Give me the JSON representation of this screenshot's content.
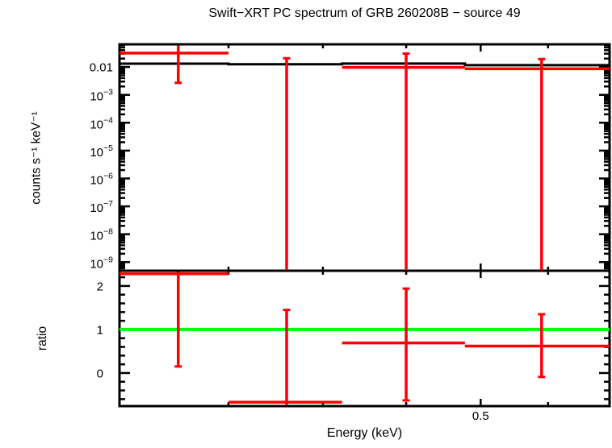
{
  "chart_data": {
    "type": "spectrum",
    "title": "Swift−XRT PC spectrum of GRB 260208B − source 49",
    "x_axis": {
      "label": "Energy (keV)",
      "scale": "log",
      "range": [
        0.3,
        0.6
      ],
      "major_ticks": [
        0.5
      ],
      "major_tick_labels": [
        "0.5"
      ],
      "minor_ticks": [
        0.35,
        0.4,
        0.45,
        0.55
      ]
    },
    "panels": [
      {
        "name": "counts",
        "ylabel": "counts s⁻¹ keV⁻¹",
        "yscale": "log",
        "yrange": [
          4.9e-10,
          0.065
        ],
        "ytick_values": [
          0.01,
          0.001,
          0.0001,
          1e-05,
          1e-06,
          1e-07,
          1e-08,
          1e-09
        ],
        "ytick_labels": [
          "0.01",
          "10^−3",
          "10^−4",
          "10^−5",
          "10^−6",
          "10^−7",
          "10^−8",
          "10^−9"
        ],
        "model": {
          "color": "#000000",
          "bin_edges": [
            0.3,
            0.35,
            0.411,
            0.489,
            0.6
          ],
          "values": [
            0.0132,
            0.0125,
            0.0133,
            0.0116
          ]
        },
        "data": {
          "color": "#ff0000",
          "points": [
            {
              "e_min": 0.3,
              "e_max": 0.35,
              "e": 0.326,
              "value": 0.0315,
              "err_high": "top",
              "err_low": 0.0027
            },
            {
              "e_min": 0.35,
              "e_max": 0.411,
              "e": 0.38,
              "value": null,
              "err_high": 0.0205,
              "err_low": "bottom"
            },
            {
              "e_min": 0.411,
              "e_max": 0.489,
              "e": 0.45,
              "value": 0.0097,
              "err_high": 0.0303,
              "err_low": "bottom"
            },
            {
              "e_min": 0.489,
              "e_max": 0.6,
              "e": 0.545,
              "value": 0.0086,
              "err_high": 0.0192,
              "err_low": "bottom"
            }
          ]
        }
      },
      {
        "name": "ratio",
        "ylabel": "ratio",
        "yscale": "linear",
        "yrange": [
          -0.76,
          2.35
        ],
        "ytick_values": [
          2,
          1,
          0
        ],
        "ytick_labels": [
          "2",
          "1",
          "0"
        ],
        "minor_tick_step": 0.2,
        "reference_line": {
          "value": 1,
          "color": "#00ff00"
        },
        "data": {
          "color": "#ff0000",
          "points": [
            {
              "e_min": 0.3,
              "e_max": 0.35,
              "e": 0.326,
              "value": 2.28,
              "err_high": "top",
              "err_low": 0.15
            },
            {
              "e_min": 0.35,
              "e_max": 0.411,
              "e": 0.38,
              "value": -0.67,
              "err_high": 1.45,
              "err_low": "bottom"
            },
            {
              "e_min": 0.411,
              "e_max": 0.489,
              "e": 0.45,
              "value": 0.69,
              "err_high": 1.94,
              "err_low": -0.63
            },
            {
              "e_min": 0.489,
              "e_max": 0.6,
              "e": 0.545,
              "value": 0.62,
              "err_high": 1.35,
              "err_low": -0.09
            }
          ]
        }
      }
    ],
    "frame_color": "#000000",
    "background_color": "#ffffff"
  }
}
